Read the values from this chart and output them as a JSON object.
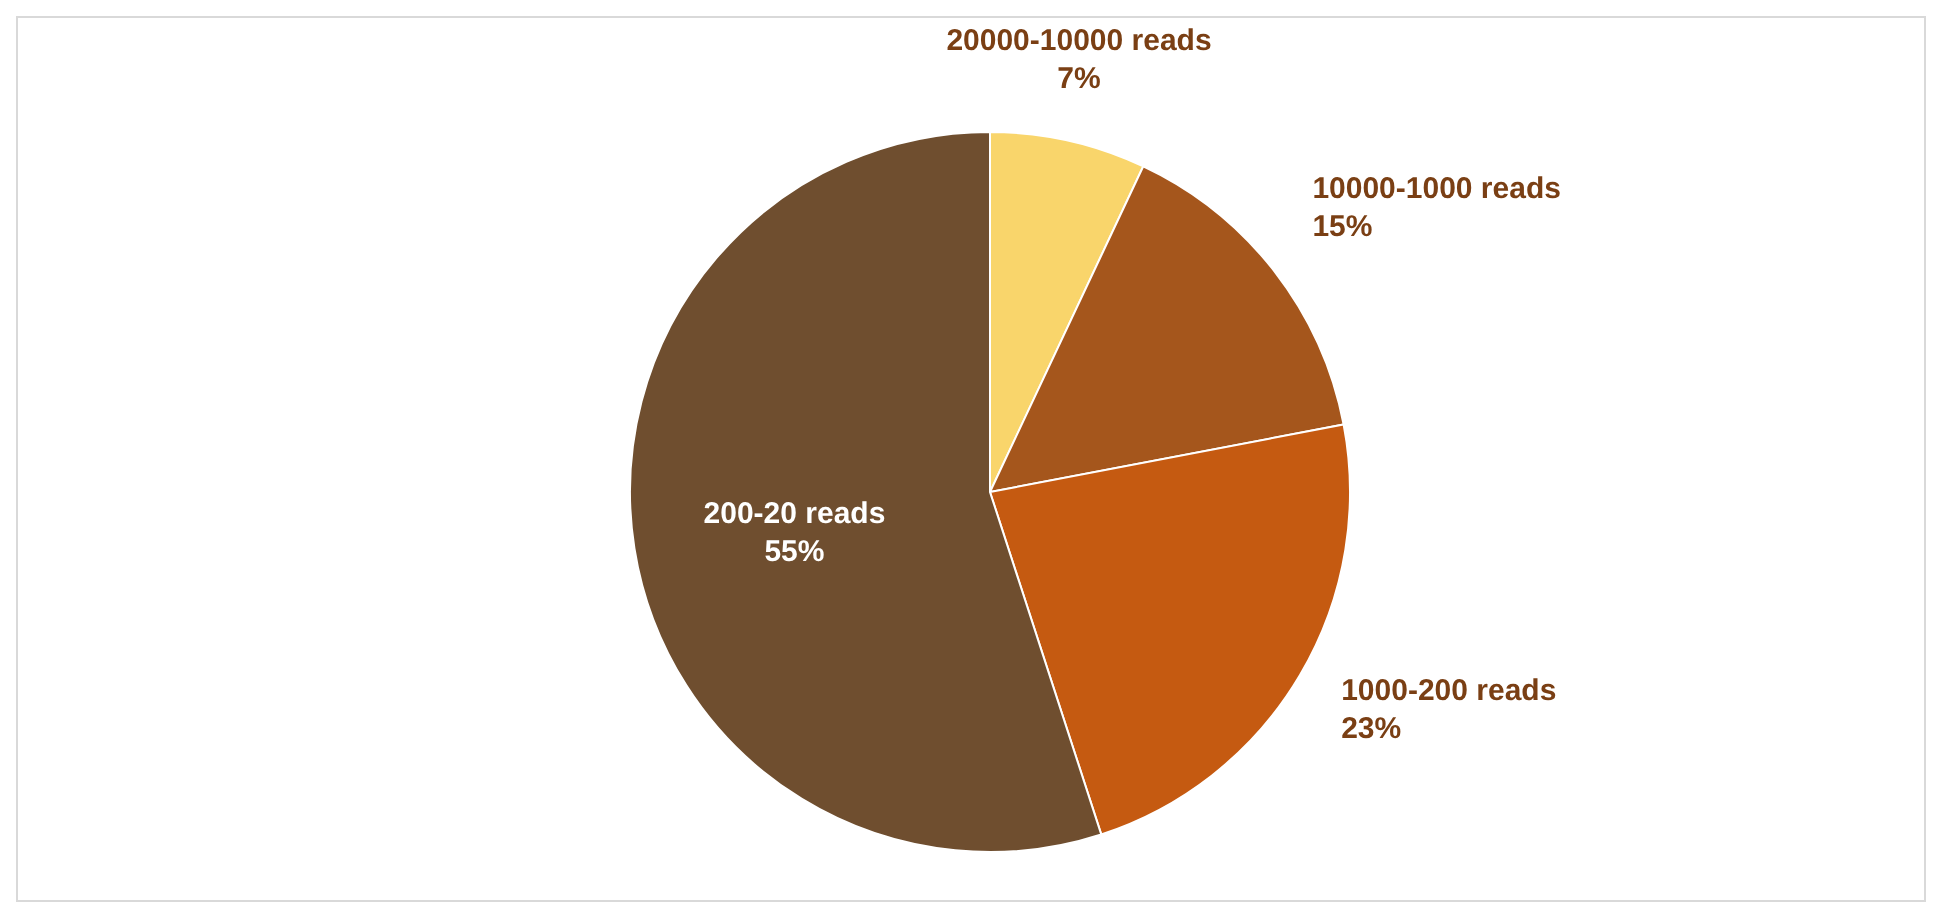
{
  "chart_data": {
    "type": "pie",
    "categories": [
      "20000-10000 reads",
      "10000-1000 reads",
      "1000-200 reads",
      "200-20 reads"
    ],
    "values": [
      7,
      15,
      23,
      55
    ],
    "colors": [
      "#f9d56b",
      "#a5561c",
      "#c55a11",
      "#6f4e2f"
    ],
    "value_labels": [
      "7%",
      "15%",
      "23%",
      "55%"
    ]
  }
}
